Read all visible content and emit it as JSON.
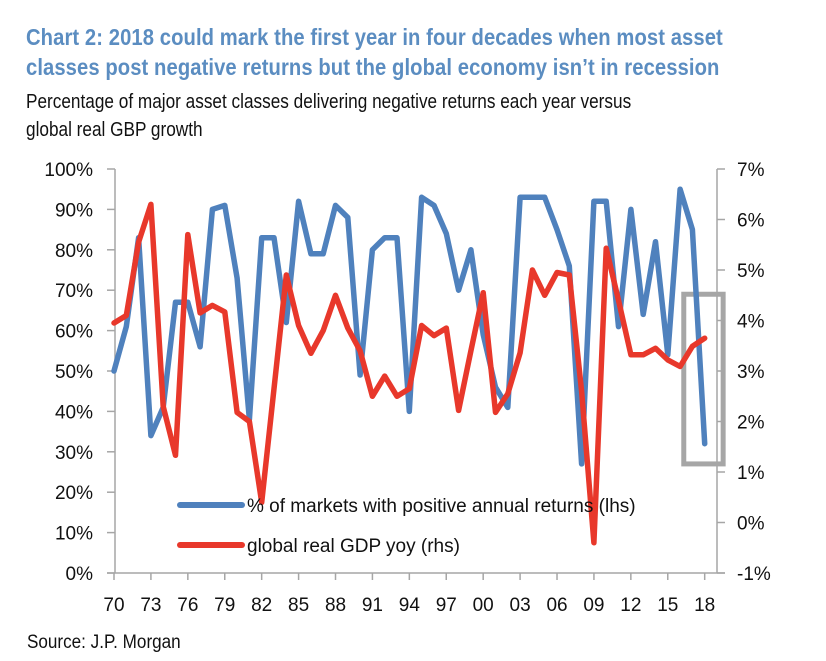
{
  "header": {
    "title_line1": "Chart 2: 2018 could mark the first year in four decades when most asset",
    "title_line2": "classes post negative returns but the global economy isn’t in recession",
    "subtitle_line1": "Percentage of major asset classes delivering negative returns each year versus",
    "subtitle_line2": "global real GBP growth"
  },
  "footer": {
    "source": "Source: J.P. Morgan"
  },
  "colors": {
    "title": "#5b8dc1",
    "blue_series": "#4f81bd",
    "red_series": "#e8382b",
    "axis": "#a6a6a6",
    "highlight_box": "#a6a6a6"
  },
  "chart_data": {
    "type": "line",
    "title": "Chart 2: 2018 could mark the first year in four decades when most asset classes post negative returns but the global economy isn’t in recession",
    "subtitle": "Percentage of major asset classes delivering negative returns each year versus global real GBP growth",
    "xlabel": "",
    "ylabel_left": "",
    "ylabel_right": "",
    "x": [
      1970,
      1971,
      1972,
      1973,
      1974,
      1975,
      1976,
      1977,
      1978,
      1979,
      1980,
      1981,
      1982,
      1983,
      1984,
      1985,
      1986,
      1987,
      1988,
      1989,
      1990,
      1991,
      1992,
      1993,
      1994,
      1995,
      1996,
      1997,
      1998,
      1999,
      2000,
      2001,
      2002,
      2003,
      2004,
      2005,
      2006,
      2007,
      2008,
      2009,
      2010,
      2011,
      2012,
      2013,
      2014,
      2015,
      2016,
      2017,
      2018
    ],
    "x_range": [
      1970,
      2019
    ],
    "x_tick_values": [
      1970,
      1973,
      1976,
      1979,
      1982,
      1985,
      1988,
      1991,
      1994,
      1997,
      2000,
      2003,
      2006,
      2009,
      2012,
      2015,
      2018
    ],
    "x_tick_labels": [
      "70",
      "73",
      "76",
      "79",
      "82",
      "85",
      "88",
      "91",
      "94",
      "97",
      "00",
      "03",
      "06",
      "09",
      "12",
      "15",
      "18"
    ],
    "y_left": {
      "range": [
        0,
        100
      ],
      "tick_values": [
        0,
        10,
        20,
        30,
        40,
        50,
        60,
        70,
        80,
        90,
        100
      ],
      "tick_labels": [
        "0%",
        "10%",
        "20%",
        "30%",
        "40%",
        "50%",
        "60%",
        "70%",
        "80%",
        "90%",
        "100%"
      ]
    },
    "y_right": {
      "range": [
        -1,
        7
      ],
      "tick_values": [
        -1,
        0,
        1,
        2,
        3,
        4,
        5,
        6,
        7
      ],
      "tick_labels": [
        "-1%",
        "0%",
        "1%",
        "2%",
        "3%",
        "4%",
        "5%",
        "6%",
        "7%"
      ]
    },
    "grid": false,
    "legend_position": "bottom-center",
    "series": [
      {
        "name": "% of markets with positive annual returns (lhs)",
        "axis": "left",
        "color": "#4f81bd",
        "values": [
          50,
          61,
          83,
          34,
          41,
          67,
          67,
          56,
          90,
          91,
          73,
          38,
          83,
          83,
          62,
          92,
          79,
          79,
          91,
          88,
          49,
          80,
          83,
          83,
          40,
          93,
          91,
          84,
          70,
          80,
          59,
          46,
          41,
          93,
          93,
          93,
          85,
          76,
          27,
          92,
          92,
          61,
          90,
          64,
          82,
          54,
          95,
          85,
          32
        ]
      },
      {
        "name": "global real GDP yoy (rhs)",
        "axis": "right",
        "color": "#e8382b",
        "values": [
          3.95,
          4.1,
          5.55,
          6.3,
          2.3,
          1.33,
          5.7,
          4.15,
          4.3,
          4.17,
          2.18,
          2.0,
          0.4,
          2.65,
          4.9,
          3.9,
          3.35,
          3.8,
          4.5,
          3.85,
          3.4,
          2.5,
          2.9,
          2.5,
          2.65,
          3.9,
          3.7,
          3.85,
          2.22,
          3.4,
          4.55,
          2.18,
          2.55,
          3.36,
          5.0,
          4.5,
          4.95,
          4.9,
          2.6,
          -0.4,
          5.43,
          4.4,
          3.32,
          3.32,
          3.45,
          3.22,
          3.09,
          3.49,
          3.65
        ]
      }
    ],
    "annotations": [
      {
        "type": "highlight-box",
        "x_range": [
          2016.3,
          2019.5
        ],
        "y_left_range": [
          27,
          69
        ],
        "note": "grey rectangle highlighting 2017-2018"
      }
    ]
  }
}
